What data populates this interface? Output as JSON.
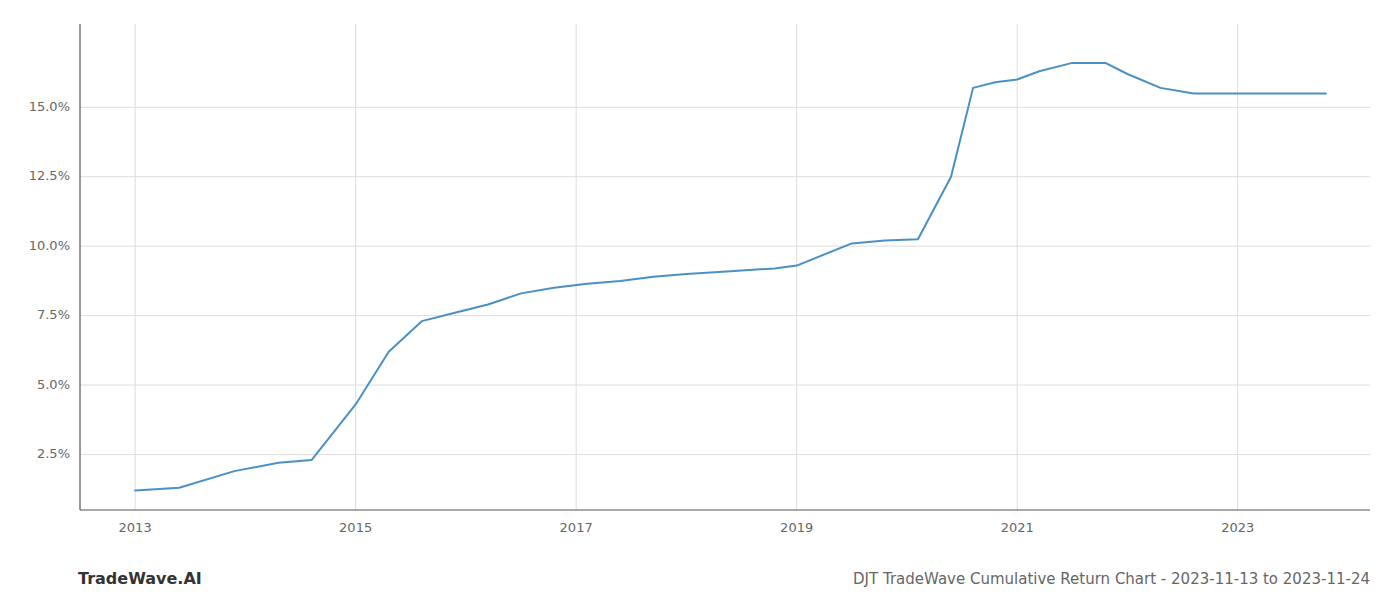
{
  "chart_data": {
    "type": "line",
    "title": "DJT TradeWave Cumulative Return Chart - 2023-11-13 to 2023-11-24",
    "annotations": [
      "TradeWave.AI"
    ],
    "x": [
      2013.0,
      2013.4,
      2013.9,
      2014.3,
      2014.6,
      2015.0,
      2015.3,
      2015.6,
      2015.9,
      2016.2,
      2016.5,
      2016.8,
      2017.1,
      2017.4,
      2017.7,
      2018.0,
      2018.4,
      2018.8,
      2019.0,
      2019.5,
      2019.8,
      2020.1,
      2020.4,
      2020.6,
      2020.8,
      2021.0,
      2021.2,
      2021.5,
      2021.8,
      2022.0,
      2022.3,
      2022.6,
      2022.9,
      2023.0,
      2023.3,
      2023.8
    ],
    "values": [
      1.2,
      1.3,
      1.9,
      2.2,
      2.3,
      4.3,
      6.2,
      7.3,
      7.6,
      7.9,
      8.3,
      8.5,
      8.65,
      8.75,
      8.9,
      9.0,
      9.1,
      9.2,
      9.3,
      10.1,
      10.2,
      10.25,
      12.5,
      15.7,
      15.9,
      16.0,
      16.3,
      16.6,
      16.6,
      16.2,
      15.7,
      15.5,
      15.5,
      15.5,
      15.5,
      15.5
    ],
    "color": "#4a90c4",
    "xlim": [
      2012.5,
      2024.2
    ],
    "ylim": [
      0.5,
      18.0
    ],
    "xticks": [
      2013,
      2015,
      2017,
      2019,
      2021,
      2023
    ],
    "yticks": [
      {
        "value": 2.5,
        "label": "2.5%"
      },
      {
        "value": 5.0,
        "label": "5.0%"
      },
      {
        "value": 7.5,
        "label": "7.5%"
      },
      {
        "value": 10.0,
        "label": "10.0%"
      },
      {
        "value": 12.5,
        "label": "12.5%"
      },
      {
        "value": 15.0,
        "label": "15.0%"
      }
    ],
    "grid": true
  }
}
